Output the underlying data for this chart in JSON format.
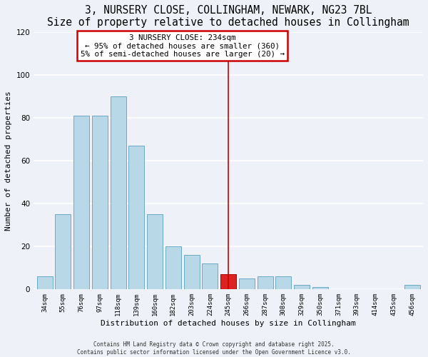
{
  "title1": "3, NURSERY CLOSE, COLLINGHAM, NEWARK, NG23 7BL",
  "title2": "Size of property relative to detached houses in Collingham",
  "xlabel": "Distribution of detached houses by size in Collingham",
  "ylabel": "Number of detached properties",
  "bar_labels": [
    "34sqm",
    "55sqm",
    "76sqm",
    "97sqm",
    "118sqm",
    "139sqm",
    "160sqm",
    "182sqm",
    "203sqm",
    "224sqm",
    "245sqm",
    "266sqm",
    "287sqm",
    "308sqm",
    "329sqm",
    "350sqm",
    "371sqm",
    "393sqm",
    "414sqm",
    "435sqm",
    "456sqm"
  ],
  "bar_values": [
    6,
    35,
    81,
    81,
    90,
    67,
    35,
    20,
    16,
    12,
    7,
    5,
    6,
    6,
    2,
    1,
    0,
    0,
    0,
    0,
    2
  ],
  "bar_color": "#b8d8e8",
  "bar_edge_color": "#6aaac8",
  "highlight_bar_index": 10,
  "highlight_bar_color": "#dd2222",
  "highlight_bar_edge_color": "#aa0000",
  "vline_x_index": 10,
  "vline_color": "#cc0000",
  "annotation_title": "3 NURSERY CLOSE: 234sqm",
  "annotation_line1": "← 95% of detached houses are smaller (360)",
  "annotation_line2": "5% of semi-detached houses are larger (20) →",
  "annotation_box_color": "#ffffff",
  "annotation_box_edge_color": "#cc0000",
  "ylim": [
    0,
    120
  ],
  "yticks": [
    0,
    20,
    40,
    60,
    80,
    100,
    120
  ],
  "footer1": "Contains HM Land Registry data © Crown copyright and database right 2025.",
  "footer2": "Contains public sector information licensed under the Open Government Licence v3.0.",
  "background_color": "#eef2f8",
  "grid_color": "#ffffff",
  "title1_fontsize": 10.5,
  "title2_fontsize": 9.5,
  "ann_fontsize": 7.8
}
